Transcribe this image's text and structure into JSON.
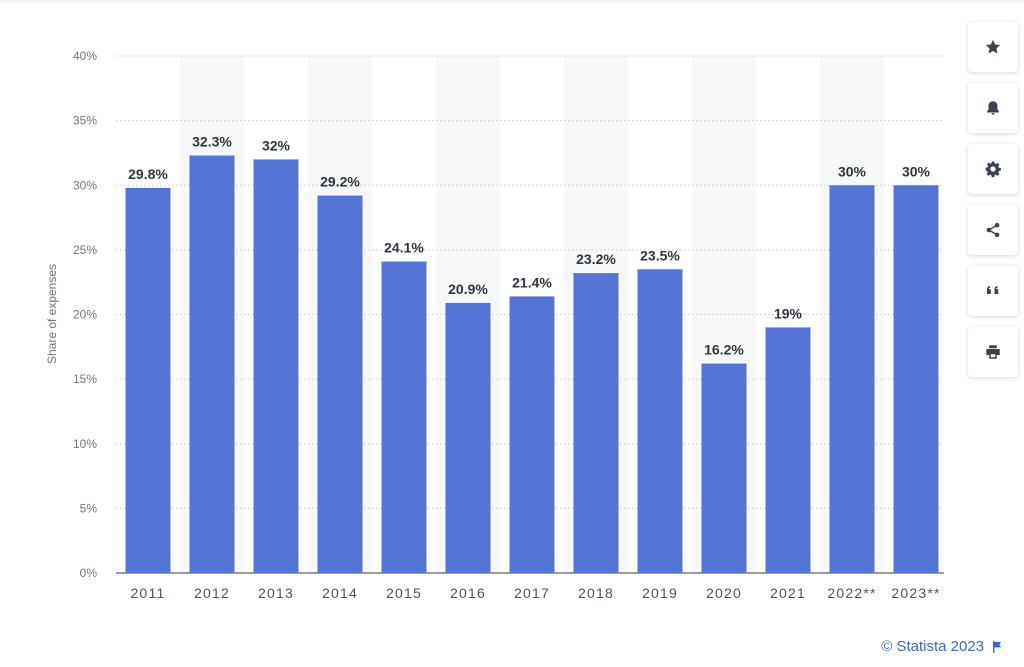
{
  "chart_data": {
    "type": "bar",
    "categories": [
      "2011",
      "2012",
      "2013",
      "2014",
      "2015",
      "2016",
      "2017",
      "2018",
      "2019",
      "2020",
      "2021",
      "2022**",
      "2023**"
    ],
    "values": [
      29.8,
      32.3,
      32,
      29.2,
      24.1,
      20.9,
      21.4,
      23.2,
      23.5,
      16.2,
      19,
      30,
      30
    ],
    "value_labels": [
      "29.8%",
      "32.3%",
      "32%",
      "29.2%",
      "24.1%",
      "20.9%",
      "21.4%",
      "23.2%",
      "23.5%",
      "16.2%",
      "19%",
      "30%",
      "30%"
    ],
    "ylabel": "Share of expenses",
    "ylim": [
      0,
      40
    ],
    "yticks": [
      0,
      5,
      10,
      15,
      20,
      25,
      30,
      35,
      40
    ],
    "ytick_labels": [
      "0%",
      "5%",
      "10%",
      "15%",
      "20%",
      "25%",
      "30%",
      "35%",
      "40%"
    ],
    "grid": true,
    "bar_color": "#5474d6"
  },
  "toolbar": [
    {
      "icon": "star-icon",
      "action": "favorite"
    },
    {
      "icon": "bell-icon",
      "action": "notifications"
    },
    {
      "icon": "gear-icon",
      "action": "settings"
    },
    {
      "icon": "share-icon",
      "action": "share"
    },
    {
      "icon": "quote-icon",
      "action": "cite"
    },
    {
      "icon": "print-icon",
      "action": "print"
    }
  ],
  "credit": {
    "text": "© Statista 2023",
    "color": "#3f66c1"
  }
}
